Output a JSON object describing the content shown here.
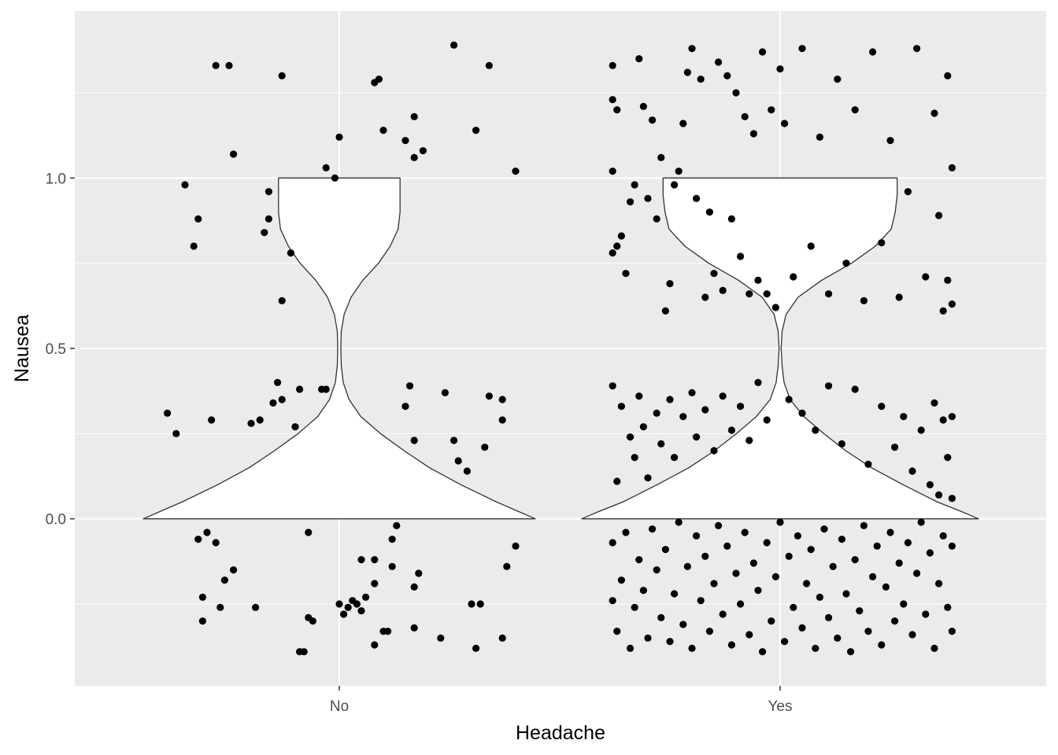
{
  "chart_data": {
    "type": "violin+jitter",
    "title": "",
    "xlabel": "Headache",
    "ylabel": "Nausea",
    "categories": [
      "No",
      "Yes"
    ],
    "ylim": [
      -0.49,
      1.49
    ],
    "yticks": [
      0.0,
      0.5,
      1.0
    ],
    "ytick_labels": [
      "0.0",
      "0.5",
      "1.0"
    ],
    "grid": true,
    "legend": "none",
    "colors": {
      "panel_background": "#ebebeb",
      "grid": "#ffffff",
      "violin_fill": "#ffffff",
      "violin_stroke": "#333333",
      "points": "#000000"
    },
    "violin_outline": {
      "y": [
        0.0,
        0.02,
        0.05,
        0.1,
        0.15,
        0.2,
        0.25,
        0.3,
        0.35,
        0.4,
        0.45,
        0.5,
        0.55,
        0.6,
        0.65,
        0.7,
        0.75,
        0.8,
        0.85,
        0.9,
        0.95,
        1.0
      ],
      "No": [
        1.0,
        0.92,
        0.8,
        0.62,
        0.46,
        0.33,
        0.21,
        0.11,
        0.05,
        0.02,
        0.01,
        0.008,
        0.01,
        0.025,
        0.06,
        0.12,
        0.2,
        0.26,
        0.3,
        0.31,
        0.31,
        0.31
      ],
      "Yes": [
        1.0,
        0.92,
        0.79,
        0.62,
        0.46,
        0.33,
        0.22,
        0.12,
        0.05,
        0.02,
        0.01,
        0.005,
        0.01,
        0.03,
        0.09,
        0.21,
        0.36,
        0.48,
        0.56,
        0.58,
        0.59,
        0.59
      ]
    },
    "jitter_points": {
      "No": [
        {
          "x": -0.39,
          "y": 0.31
        },
        {
          "x": -0.37,
          "y": 0.25
        },
        {
          "x": -0.35,
          "y": 0.98
        },
        {
          "x": -0.33,
          "y": 0.8
        },
        {
          "x": -0.32,
          "y": 0.88
        },
        {
          "x": -0.31,
          "y": -0.23
        },
        {
          "x": -0.32,
          "y": -0.06
        },
        {
          "x": -0.31,
          "y": -0.3
        },
        {
          "x": -0.3,
          "y": -0.04
        },
        {
          "x": -0.29,
          "y": 0.29
        },
        {
          "x": -0.28,
          "y": -0.07
        },
        {
          "x": -0.27,
          "y": -0.26
        },
        {
          "x": -0.28,
          "y": 1.33
        },
        {
          "x": -0.25,
          "y": 1.33
        },
        {
          "x": -0.24,
          "y": 1.07
        },
        {
          "x": -0.26,
          "y": -0.18
        },
        {
          "x": -0.24,
          "y": -0.15
        },
        {
          "x": -0.2,
          "y": 0.28
        },
        {
          "x": -0.18,
          "y": 0.29
        },
        {
          "x": -0.19,
          "y": -0.26
        },
        {
          "x": -0.17,
          "y": 0.84
        },
        {
          "x": -0.16,
          "y": 0.88
        },
        {
          "x": -0.16,
          "y": 0.96
        },
        {
          "x": -0.15,
          "y": 0.34
        },
        {
          "x": -0.14,
          "y": 0.4
        },
        {
          "x": -0.13,
          "y": 0.35
        },
        {
          "x": -0.13,
          "y": 1.3
        },
        {
          "x": -0.13,
          "y": 0.64
        },
        {
          "x": -0.11,
          "y": 0.78
        },
        {
          "x": -0.1,
          "y": 0.27
        },
        {
          "x": -0.09,
          "y": 0.38
        },
        {
          "x": -0.09,
          "y": -0.39
        },
        {
          "x": -0.08,
          "y": -0.39
        },
        {
          "x": -0.07,
          "y": -0.29
        },
        {
          "x": -0.07,
          "y": -0.04
        },
        {
          "x": -0.06,
          "y": -0.3
        },
        {
          "x": -0.04,
          "y": 0.38
        },
        {
          "x": -0.03,
          "y": 0.38
        },
        {
          "x": -0.03,
          "y": 1.03
        },
        {
          "x": -0.01,
          "y": 1.0
        },
        {
          "x": 0.0,
          "y": 1.12
        },
        {
          "x": 0.0,
          "y": -0.25
        },
        {
          "x": 0.01,
          "y": -0.28
        },
        {
          "x": 0.02,
          "y": -0.26
        },
        {
          "x": 0.03,
          "y": -0.24
        },
        {
          "x": 0.04,
          "y": -0.25
        },
        {
          "x": 0.05,
          "y": -0.27
        },
        {
          "x": 0.06,
          "y": -0.23
        },
        {
          "x": 0.05,
          "y": -0.12
        },
        {
          "x": 0.08,
          "y": -0.12
        },
        {
          "x": 0.08,
          "y": -0.19
        },
        {
          "x": 0.08,
          "y": -0.37
        },
        {
          "x": 0.1,
          "y": -0.33
        },
        {
          "x": 0.11,
          "y": -0.33
        },
        {
          "x": 0.12,
          "y": -0.06
        },
        {
          "x": 0.12,
          "y": -0.14
        },
        {
          "x": 0.13,
          "y": -0.02
        },
        {
          "x": 0.08,
          "y": 1.28
        },
        {
          "x": 0.09,
          "y": 1.29
        },
        {
          "x": 0.1,
          "y": 1.14
        },
        {
          "x": 0.15,
          "y": 1.11
        },
        {
          "x": 0.17,
          "y": 1.06
        },
        {
          "x": 0.17,
          "y": 1.18
        },
        {
          "x": 0.19,
          "y": 1.08
        },
        {
          "x": 0.15,
          "y": 0.33
        },
        {
          "x": 0.16,
          "y": 0.39
        },
        {
          "x": 0.17,
          "y": 0.23
        },
        {
          "x": 0.17,
          "y": -0.32
        },
        {
          "x": 0.17,
          "y": -0.2
        },
        {
          "x": 0.18,
          "y": -0.16
        },
        {
          "x": 0.23,
          "y": -0.35
        },
        {
          "x": 0.24,
          "y": 0.37
        },
        {
          "x": 0.26,
          "y": 0.23
        },
        {
          "x": 0.27,
          "y": 0.17
        },
        {
          "x": 0.26,
          "y": 1.39
        },
        {
          "x": 0.29,
          "y": 0.14
        },
        {
          "x": 0.31,
          "y": 1.14
        },
        {
          "x": 0.3,
          "y": -0.25
        },
        {
          "x": 0.31,
          "y": -0.38
        },
        {
          "x": 0.32,
          "y": -0.25
        },
        {
          "x": 0.33,
          "y": 0.21
        },
        {
          "x": 0.34,
          "y": 0.36
        },
        {
          "x": 0.34,
          "y": 1.33
        },
        {
          "x": 0.37,
          "y": 0.35
        },
        {
          "x": 0.37,
          "y": 0.29
        },
        {
          "x": 0.37,
          "y": -0.35
        },
        {
          "x": 0.38,
          "y": -0.14
        },
        {
          "x": 0.4,
          "y": -0.08
        },
        {
          "x": 0.4,
          "y": 1.02
        }
      ],
      "Yes": [
        {
          "x": -0.38,
          "y": 1.33
        },
        {
          "x": -0.38,
          "y": 1.23
        },
        {
          "x": -0.37,
          "y": 1.2
        },
        {
          "x": -0.38,
          "y": 1.02
        },
        {
          "x": -0.38,
          "y": 0.78
        },
        {
          "x": -0.37,
          "y": 0.8
        },
        {
          "x": -0.36,
          "y": 0.83
        },
        {
          "x": -0.35,
          "y": 0.72
        },
        {
          "x": -0.34,
          "y": 0.93
        },
        {
          "x": -0.33,
          "y": 0.98
        },
        {
          "x": -0.32,
          "y": 1.35
        },
        {
          "x": -0.31,
          "y": 1.21
        },
        {
          "x": -0.3,
          "y": 0.94
        },
        {
          "x": -0.29,
          "y": 1.17
        },
        {
          "x": -0.28,
          "y": 0.88
        },
        {
          "x": -0.27,
          "y": 1.06
        },
        {
          "x": -0.26,
          "y": 0.61
        },
        {
          "x": -0.25,
          "y": 0.69
        },
        {
          "x": -0.24,
          "y": 0.98
        },
        {
          "x": -0.23,
          "y": 1.02
        },
        {
          "x": -0.22,
          "y": 1.16
        },
        {
          "x": -0.21,
          "y": 1.31
        },
        {
          "x": -0.2,
          "y": 1.38
        },
        {
          "x": -0.19,
          "y": 0.94
        },
        {
          "x": -0.18,
          "y": 1.29
        },
        {
          "x": -0.17,
          "y": 0.65
        },
        {
          "x": -0.16,
          "y": 0.9
        },
        {
          "x": -0.15,
          "y": 0.72
        },
        {
          "x": -0.14,
          "y": 1.34
        },
        {
          "x": -0.13,
          "y": 0.67
        },
        {
          "x": -0.12,
          "y": 1.3
        },
        {
          "x": -0.11,
          "y": 0.88
        },
        {
          "x": -0.1,
          "y": 1.25
        },
        {
          "x": -0.09,
          "y": 0.77
        },
        {
          "x": -0.08,
          "y": 1.18
        },
        {
          "x": -0.07,
          "y": 0.66
        },
        {
          "x": -0.06,
          "y": 1.13
        },
        {
          "x": -0.05,
          "y": 0.7
        },
        {
          "x": -0.04,
          "y": 1.37
        },
        {
          "x": -0.03,
          "y": 0.66
        },
        {
          "x": -0.02,
          "y": 1.2
        },
        {
          "x": -0.01,
          "y": 0.62
        },
        {
          "x": 0.0,
          "y": 1.32
        },
        {
          "x": 0.01,
          "y": 1.16
        },
        {
          "x": 0.03,
          "y": 0.71
        },
        {
          "x": 0.05,
          "y": 1.38
        },
        {
          "x": 0.07,
          "y": 0.8
        },
        {
          "x": 0.09,
          "y": 1.12
        },
        {
          "x": 0.11,
          "y": 0.66
        },
        {
          "x": 0.13,
          "y": 1.29
        },
        {
          "x": 0.15,
          "y": 0.75
        },
        {
          "x": 0.17,
          "y": 1.2
        },
        {
          "x": 0.19,
          "y": 0.64
        },
        {
          "x": 0.21,
          "y": 1.37
        },
        {
          "x": 0.23,
          "y": 0.81
        },
        {
          "x": 0.25,
          "y": 1.11
        },
        {
          "x": 0.27,
          "y": 0.65
        },
        {
          "x": 0.29,
          "y": 0.96
        },
        {
          "x": 0.31,
          "y": 1.38
        },
        {
          "x": 0.33,
          "y": 0.71
        },
        {
          "x": 0.35,
          "y": 1.19
        },
        {
          "x": 0.36,
          "y": 0.89
        },
        {
          "x": 0.37,
          "y": 0.61
        },
        {
          "x": 0.38,
          "y": 1.3
        },
        {
          "x": 0.38,
          "y": 0.7
        },
        {
          "x": 0.39,
          "y": 1.03
        },
        {
          "x": 0.39,
          "y": 0.63
        },
        {
          "x": -0.38,
          "y": 0.39
        },
        {
          "x": -0.37,
          "y": 0.11
        },
        {
          "x": -0.36,
          "y": 0.33
        },
        {
          "x": -0.34,
          "y": 0.24
        },
        {
          "x": -0.33,
          "y": 0.18
        },
        {
          "x": -0.32,
          "y": 0.36
        },
        {
          "x": -0.31,
          "y": 0.27
        },
        {
          "x": -0.3,
          "y": 0.12
        },
        {
          "x": -0.28,
          "y": 0.31
        },
        {
          "x": -0.27,
          "y": 0.22
        },
        {
          "x": -0.25,
          "y": 0.35
        },
        {
          "x": -0.24,
          "y": 0.18
        },
        {
          "x": -0.22,
          "y": 0.3
        },
        {
          "x": -0.2,
          "y": 0.37
        },
        {
          "x": -0.19,
          "y": 0.24
        },
        {
          "x": -0.17,
          "y": 0.32
        },
        {
          "x": -0.15,
          "y": 0.2
        },
        {
          "x": -0.13,
          "y": 0.36
        },
        {
          "x": -0.11,
          "y": 0.26
        },
        {
          "x": -0.09,
          "y": 0.33
        },
        {
          "x": -0.07,
          "y": 0.23
        },
        {
          "x": -0.05,
          "y": 0.4
        },
        {
          "x": -0.03,
          "y": 0.29
        },
        {
          "x": 0.02,
          "y": 0.35
        },
        {
          "x": 0.05,
          "y": 0.31
        },
        {
          "x": 0.08,
          "y": 0.26
        },
        {
          "x": 0.11,
          "y": 0.39
        },
        {
          "x": 0.14,
          "y": 0.22
        },
        {
          "x": 0.17,
          "y": 0.38
        },
        {
          "x": 0.2,
          "y": 0.16
        },
        {
          "x": 0.23,
          "y": 0.33
        },
        {
          "x": 0.26,
          "y": 0.21
        },
        {
          "x": 0.28,
          "y": 0.3
        },
        {
          "x": 0.3,
          "y": 0.14
        },
        {
          "x": 0.32,
          "y": 0.26
        },
        {
          "x": 0.34,
          "y": 0.1
        },
        {
          "x": 0.35,
          "y": 0.34
        },
        {
          "x": 0.36,
          "y": 0.07
        },
        {
          "x": 0.37,
          "y": 0.29
        },
        {
          "x": 0.38,
          "y": 0.18
        },
        {
          "x": 0.39,
          "y": 0.3
        },
        {
          "x": 0.39,
          "y": 0.06
        },
        {
          "x": -0.38,
          "y": -0.07
        },
        {
          "x": -0.38,
          "y": -0.24
        },
        {
          "x": -0.37,
          "y": -0.33
        },
        {
          "x": -0.36,
          "y": -0.18
        },
        {
          "x": -0.35,
          "y": -0.04
        },
        {
          "x": -0.34,
          "y": -0.38
        },
        {
          "x": -0.33,
          "y": -0.26
        },
        {
          "x": -0.32,
          "y": -0.12
        },
        {
          "x": -0.31,
          "y": -0.21
        },
        {
          "x": -0.3,
          "y": -0.35
        },
        {
          "x": -0.29,
          "y": -0.03
        },
        {
          "x": -0.28,
          "y": -0.15
        },
        {
          "x": -0.27,
          "y": -0.29
        },
        {
          "x": -0.26,
          "y": -0.09
        },
        {
          "x": -0.25,
          "y": -0.36
        },
        {
          "x": -0.24,
          "y": -0.22
        },
        {
          "x": -0.23,
          "y": -0.01
        },
        {
          "x": -0.22,
          "y": -0.31
        },
        {
          "x": -0.21,
          "y": -0.14
        },
        {
          "x": -0.2,
          "y": -0.38
        },
        {
          "x": -0.19,
          "y": -0.05
        },
        {
          "x": -0.18,
          "y": -0.24
        },
        {
          "x": -0.17,
          "y": -0.11
        },
        {
          "x": -0.16,
          "y": -0.33
        },
        {
          "x": -0.15,
          "y": -0.19
        },
        {
          "x": -0.14,
          "y": -0.02
        },
        {
          "x": -0.13,
          "y": -0.28
        },
        {
          "x": -0.12,
          "y": -0.08
        },
        {
          "x": -0.11,
          "y": -0.37
        },
        {
          "x": -0.1,
          "y": -0.16
        },
        {
          "x": -0.09,
          "y": -0.25
        },
        {
          "x": -0.08,
          "y": -0.04
        },
        {
          "x": -0.07,
          "y": -0.34
        },
        {
          "x": -0.06,
          "y": -0.13
        },
        {
          "x": -0.05,
          "y": -0.21
        },
        {
          "x": -0.04,
          "y": -0.39
        },
        {
          "x": -0.03,
          "y": -0.07
        },
        {
          "x": -0.02,
          "y": -0.3
        },
        {
          "x": -0.01,
          "y": -0.17
        },
        {
          "x": 0.0,
          "y": -0.01
        },
        {
          "x": 0.01,
          "y": -0.36
        },
        {
          "x": 0.02,
          "y": -0.11
        },
        {
          "x": 0.03,
          "y": -0.26
        },
        {
          "x": 0.04,
          "y": -0.05
        },
        {
          "x": 0.05,
          "y": -0.32
        },
        {
          "x": 0.06,
          "y": -0.19
        },
        {
          "x": 0.07,
          "y": -0.09
        },
        {
          "x": 0.08,
          "y": -0.38
        },
        {
          "x": 0.09,
          "y": -0.23
        },
        {
          "x": 0.1,
          "y": -0.03
        },
        {
          "x": 0.11,
          "y": -0.29
        },
        {
          "x": 0.12,
          "y": -0.14
        },
        {
          "x": 0.13,
          "y": -0.35
        },
        {
          "x": 0.14,
          "y": -0.06
        },
        {
          "x": 0.15,
          "y": -0.22
        },
        {
          "x": 0.16,
          "y": -0.39
        },
        {
          "x": 0.17,
          "y": -0.12
        },
        {
          "x": 0.18,
          "y": -0.27
        },
        {
          "x": 0.19,
          "y": -0.02
        },
        {
          "x": 0.2,
          "y": -0.33
        },
        {
          "x": 0.21,
          "y": -0.17
        },
        {
          "x": 0.22,
          "y": -0.08
        },
        {
          "x": 0.23,
          "y": -0.37
        },
        {
          "x": 0.24,
          "y": -0.2
        },
        {
          "x": 0.25,
          "y": -0.04
        },
        {
          "x": 0.26,
          "y": -0.3
        },
        {
          "x": 0.27,
          "y": -0.13
        },
        {
          "x": 0.28,
          "y": -0.25
        },
        {
          "x": 0.29,
          "y": -0.07
        },
        {
          "x": 0.3,
          "y": -0.34
        },
        {
          "x": 0.31,
          "y": -0.16
        },
        {
          "x": 0.32,
          "y": -0.01
        },
        {
          "x": 0.33,
          "y": -0.28
        },
        {
          "x": 0.34,
          "y": -0.1
        },
        {
          "x": 0.35,
          "y": -0.38
        },
        {
          "x": 0.36,
          "y": -0.19
        },
        {
          "x": 0.37,
          "y": -0.05
        },
        {
          "x": 0.38,
          "y": -0.26
        },
        {
          "x": 0.39,
          "y": -0.33
        },
        {
          "x": 0.39,
          "y": -0.08
        }
      ]
    }
  }
}
